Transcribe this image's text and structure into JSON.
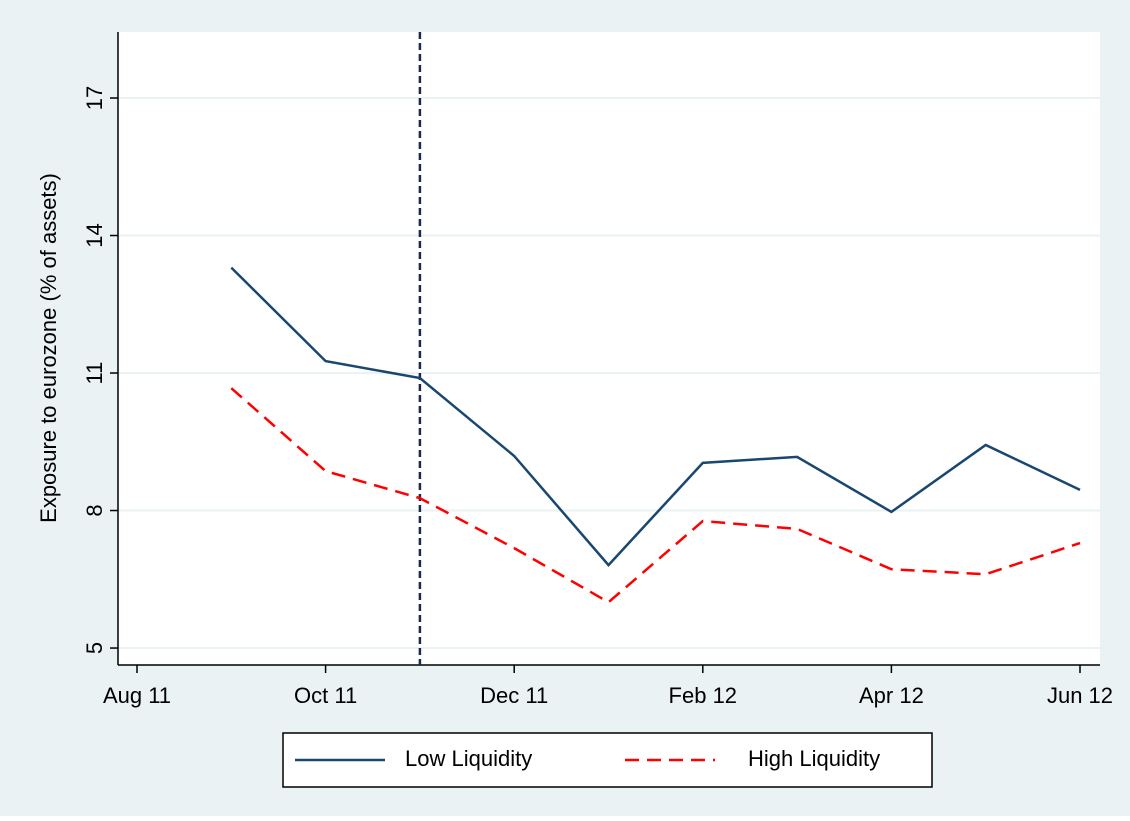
{
  "chart_data": {
    "type": "line",
    "y_label": "Exposure to eurozone (% of assets)",
    "x": [
      "2011-09",
      "2011-10",
      "2011-11",
      "2011-12",
      "2012-01",
      "2012-02",
      "2012-03",
      "2012-04",
      "2012-05",
      "2012-06"
    ],
    "series": [
      {
        "name": "Low Liquidity",
        "color": "#1a476f",
        "dash": "solid",
        "values": [
          13.3,
          11.26,
          10.89,
          9.19,
          6.81,
          9.04,
          9.17,
          7.97,
          9.43,
          8.45
        ]
      },
      {
        "name": "High Liquidity",
        "color": "#ff0000",
        "dash": "dashed",
        "values": [
          10.67,
          8.86,
          8.27,
          7.18,
          6.0,
          7.77,
          7.6,
          6.72,
          6.61,
          7.29
        ]
      }
    ],
    "xlim": [
      "2011-08",
      "2012-06"
    ],
    "xticks": [
      {
        "value": "2011-08",
        "label": "Aug 11"
      },
      {
        "value": "2011-10",
        "label": "Oct 11"
      },
      {
        "value": "2011-12",
        "label": "Dec 11"
      },
      {
        "value": "2012-02",
        "label": "Feb 12"
      },
      {
        "value": "2012-04",
        "label": "Apr 12"
      },
      {
        "value": "2012-06",
        "label": "Jun 12"
      }
    ],
    "ylim": [
      4.63,
      18.44
    ],
    "yticks": [
      5,
      8,
      11,
      14,
      17
    ],
    "grid": true,
    "vline": {
      "x": "2011-11",
      "color": "#1a2a4f"
    },
    "legend": "bottom"
  }
}
